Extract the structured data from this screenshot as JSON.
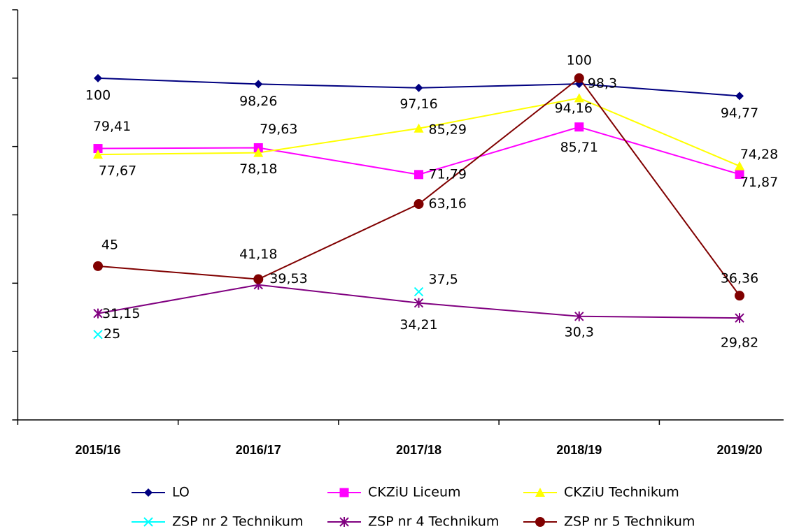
{
  "chart_data": {
    "type": "line",
    "categories": [
      "2015/16",
      "2016/17",
      "2017/18",
      "2018/19",
      "2019/20"
    ],
    "ylim": [
      0,
      120
    ],
    "yticks": [
      0,
      20,
      40,
      60,
      80,
      100,
      120
    ],
    "series": [
      {
        "name": "LO",
        "color": "#000080",
        "marker": "diamond",
        "values": [
          100,
          98.26,
          97.16,
          98.3,
          94.77
        ],
        "value_labels": [
          "100",
          "98,26",
          "97,16",
          "98,3",
          "94,77"
        ]
      },
      {
        "name": "CKZiU Liceum",
        "color": "#FF00FF",
        "marker": "square",
        "values": [
          79.41,
          79.63,
          71.79,
          85.71,
          71.87
        ],
        "value_labels": [
          "79,41",
          "79,63",
          "71,79",
          "85,71",
          "71,87"
        ]
      },
      {
        "name": "CKZiU Technikum",
        "color": "#FFFF00",
        "marker": "triangle",
        "values": [
          77.67,
          78.18,
          85.29,
          94.16,
          74.28
        ],
        "value_labels": [
          "77,67",
          "78,18",
          "85,29",
          "94,16",
          "74,28"
        ]
      },
      {
        "name": "ZSP nr 2 Technikum",
        "color": "#00FFFF",
        "marker": "x",
        "values": [
          25,
          null,
          37.5,
          null,
          null
        ],
        "value_labels": [
          "25",
          null,
          "37,5",
          null,
          null
        ]
      },
      {
        "name": "ZSP nr 4 Technikum",
        "color": "#800080",
        "marker": "star",
        "values": [
          31.15,
          39.53,
          34.21,
          30.3,
          29.82
        ],
        "value_labels": [
          "31,15",
          "39,53",
          "34,21",
          "30,3",
          "29,82"
        ]
      },
      {
        "name": "ZSP nr 5 Technikum",
        "color": "#800000",
        "marker": "circle",
        "values": [
          45,
          41.18,
          63.16,
          100,
          36.36
        ],
        "value_labels": [
          "45",
          "41,18",
          "63,16",
          "100",
          "36,36"
        ]
      }
    ]
  }
}
